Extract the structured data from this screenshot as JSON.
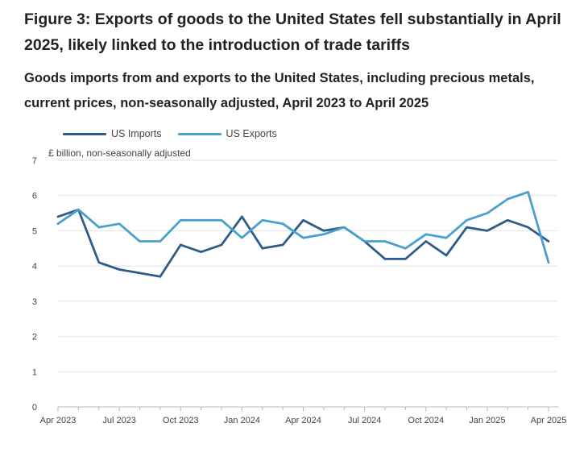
{
  "header": {
    "title": "Figure 3: Exports of goods to the United States fell substantially in April 2025, likely linked to the introduction of trade tariffs",
    "subtitle": "Goods imports from and exports to the United States, including precious metals, current prices, non-seasonally adjusted, April 2023 to April 2025"
  },
  "colors": {
    "imports": "#2e5c8a",
    "exports": "#4aa0cc",
    "grid": "#e2e2e2",
    "axis": "#bbbbbb"
  },
  "chart_data": {
    "type": "line",
    "title": "Goods imports from and exports to the United States, including precious metals, current prices, non-seasonally adjusted, April 2023 to April 2025",
    "ylabel": "£ billion, non-seasonally adjusted",
    "xlabel": "",
    "ylim": [
      0,
      7
    ],
    "yticks": [
      "0",
      "1",
      "2",
      "3",
      "4",
      "5",
      "6",
      "7"
    ],
    "grid": true,
    "legend_position": "top-left",
    "x": [
      "Apr 2023",
      "May 2023",
      "Jun 2023",
      "Jul 2023",
      "Aug 2023",
      "Sep 2023",
      "Oct 2023",
      "Nov 2023",
      "Dec 2023",
      "Jan 2024",
      "Feb 2024",
      "Mar 2024",
      "Apr 2024",
      "May 2024",
      "Jun 2024",
      "Jul 2024",
      "Aug 2024",
      "Sep 2024",
      "Oct 2024",
      "Nov 2024",
      "Dec 2024",
      "Jan 2025",
      "Feb 2025",
      "Mar 2025",
      "Apr 2025"
    ],
    "xtick_labels": [
      {
        "index": 0,
        "label": "Apr 2023"
      },
      {
        "index": 3,
        "label": "Jul 2023"
      },
      {
        "index": 6,
        "label": "Oct 2023"
      },
      {
        "index": 9,
        "label": "Jan 2024"
      },
      {
        "index": 12,
        "label": "Apr 2024"
      },
      {
        "index": 15,
        "label": "Jul 2024"
      },
      {
        "index": 18,
        "label": "Oct 2024"
      },
      {
        "index": 21,
        "label": "Jan 2025"
      },
      {
        "index": 24,
        "label": "Apr 2025"
      }
    ],
    "series": [
      {
        "name": "US Imports",
        "key": "imports",
        "values": [
          5.4,
          5.6,
          4.1,
          3.9,
          3.8,
          3.7,
          4.6,
          4.4,
          4.6,
          5.4,
          4.5,
          4.6,
          5.3,
          5.0,
          5.1,
          4.7,
          4.2,
          4.2,
          4.7,
          4.3,
          5.1,
          5.0,
          5.3,
          5.1,
          4.7
        ]
      },
      {
        "name": "US Exports",
        "key": "exports",
        "values": [
          5.2,
          5.6,
          5.1,
          5.2,
          4.7,
          4.7,
          5.3,
          5.3,
          5.3,
          4.8,
          5.3,
          5.2,
          4.8,
          4.9,
          5.1,
          4.7,
          4.7,
          4.5,
          4.9,
          4.8,
          5.3,
          5.5,
          5.9,
          6.1,
          4.1
        ]
      }
    ]
  }
}
